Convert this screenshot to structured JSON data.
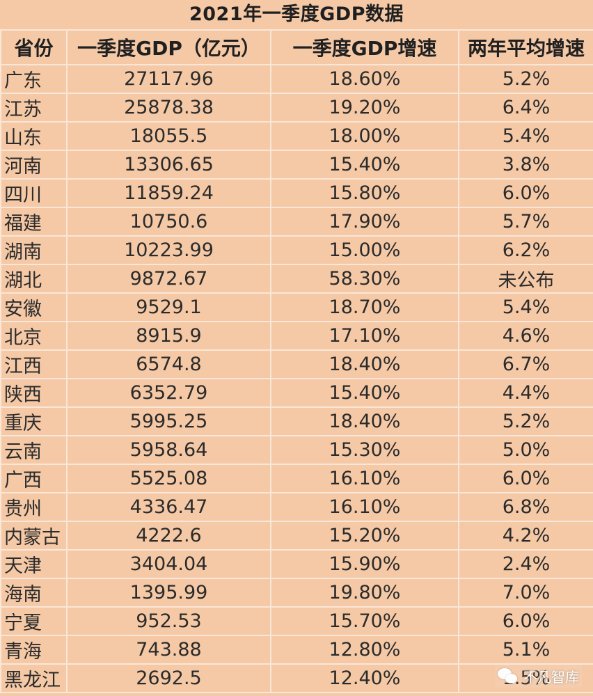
{
  "chart_data": {
    "type": "table",
    "title": "2021年一季度GDP数据",
    "columns": [
      "省份",
      "一季度GDP（亿元）",
      "一季度GDP增速",
      "两年平均增速"
    ],
    "rows": [
      [
        "广东",
        "27117.96",
        "18.60%",
        "5.2%"
      ],
      [
        "江苏",
        "25878.38",
        "19.20%",
        "6.4%"
      ],
      [
        "山东",
        "18055.5",
        "18.00%",
        "5.4%"
      ],
      [
        "河南",
        "13306.65",
        "15.40%",
        "3.8%"
      ],
      [
        "四川",
        "11859.24",
        "15.80%",
        "6.0%"
      ],
      [
        "福建",
        "10750.6",
        "17.90%",
        "5.7%"
      ],
      [
        "湖南",
        "10223.99",
        "15.00%",
        "6.2%"
      ],
      [
        "湖北",
        "9872.67",
        "58.30%",
        "未公布"
      ],
      [
        "安徽",
        "9529.1",
        "18.70%",
        "5.4%"
      ],
      [
        "北京",
        "8915.9",
        "17.10%",
        "4.6%"
      ],
      [
        "江西",
        "6574.8",
        "18.40%",
        "6.7%"
      ],
      [
        "陕西",
        "6352.79",
        "15.40%",
        "4.4%"
      ],
      [
        "重庆",
        "5995.25",
        "18.40%",
        "5.2%"
      ],
      [
        "云南",
        "5958.64",
        "15.30%",
        "5.0%"
      ],
      [
        "广西",
        "5525.08",
        "16.10%",
        "6.0%"
      ],
      [
        "贵州",
        "4336.47",
        "16.10%",
        "6.8%"
      ],
      [
        "内蒙古",
        "4222.6",
        "15.20%",
        "4.2%"
      ],
      [
        "天津",
        "3404.04",
        "15.90%",
        "2.4%"
      ],
      [
        "海南",
        "1395.99",
        "19.80%",
        "7.0%"
      ],
      [
        "宁夏",
        "952.53",
        "15.70%",
        "6.0%"
      ],
      [
        "青海",
        "743.88",
        "12.80%",
        "5.1%"
      ],
      [
        "黑龙江",
        "2692.5",
        "12.40%",
        "1.5%"
      ]
    ]
  },
  "watermark": {
    "text": "不凡智库",
    "icon": "wechat-icon"
  },
  "colors": {
    "background": "#f5c9a6",
    "grid": "#fbe6d7",
    "text": "#2b2b2b",
    "watermark_text": "#ffffff"
  }
}
